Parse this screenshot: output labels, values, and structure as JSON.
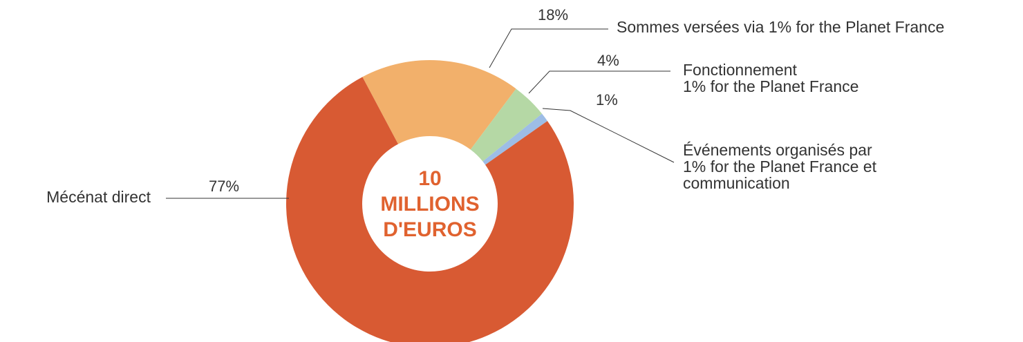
{
  "chart_data": {
    "type": "donut",
    "center_label": "10\nMILLIONS\nD'EUROS",
    "categories": [
      "Sommes versées via 1% for the Planet France",
      "Fonctionnement\n1% for the Planet France",
      "Événements organisés par\n1% for the Planet France et\ncommunication",
      "Mécénat direct"
    ],
    "values": [
      18,
      4,
      1,
      77
    ],
    "value_labels": [
      "18%",
      "4%",
      "1%",
      "77%"
    ],
    "colors": [
      "#f2b06b",
      "#b5d8a5",
      "#9dbde6",
      "#d85a33"
    ]
  }
}
